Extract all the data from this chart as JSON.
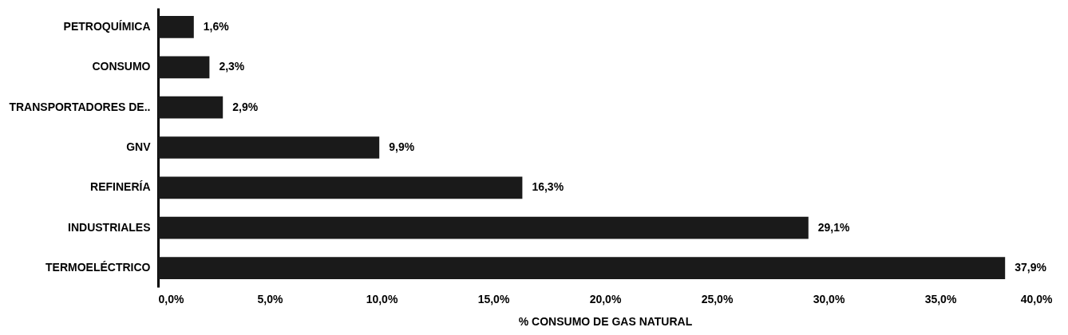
{
  "chart_data": {
    "type": "bar",
    "orientation": "horizontal",
    "xlabel": "% CONSUMO DE GAS NATURAL",
    "categories": [
      "PETROQUÍMICA",
      "CONSUMO",
      "TRANSPORTADORES DE..",
      "GNV",
      "REFINERÍA",
      "INDUSTRIALES",
      "TERMOELÉCTRICO"
    ],
    "values": [
      1.6,
      2.3,
      2.9,
      9.9,
      16.3,
      29.1,
      37.9
    ],
    "value_labels": [
      "1,6%",
      "2,3%",
      "2,9%",
      "9,9%",
      "16,3%",
      "29,1%",
      "37,9%"
    ],
    "color": "#1a1a1a",
    "xlim": [
      0,
      40
    ],
    "xticks": [
      {
        "value": 0,
        "label": "0,0%"
      },
      {
        "value": 5,
        "label": "5,0%"
      },
      {
        "value": 10,
        "label": "10,0%"
      },
      {
        "value": 15,
        "label": "15,0%"
      },
      {
        "value": 20,
        "label": "20,0%"
      },
      {
        "value": 25,
        "label": "25,0%"
      },
      {
        "value": 30,
        "label": "30,0%"
      },
      {
        "value": 35,
        "label": "35,0%"
      },
      {
        "value": 40,
        "label": "40,0%"
      }
    ],
    "grid": false
  }
}
